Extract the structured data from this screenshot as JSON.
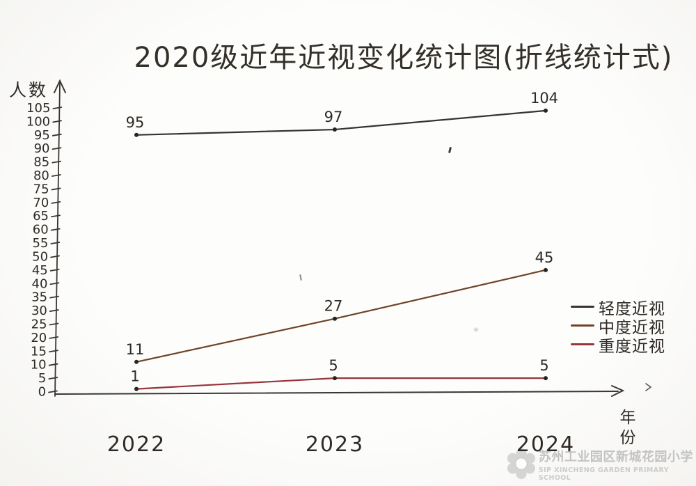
{
  "page": {
    "paper_color": "#fdfdfc",
    "ink_color": "#2e2a26"
  },
  "chart_data": {
    "type": "line",
    "title": "2020级近年近视变化统计图(折线统计式)",
    "ylabel": "人数",
    "xlabel": "年份",
    "categories": [
      "2022",
      "2023",
      "2024"
    ],
    "y_ticks": [
      0,
      5,
      10,
      15,
      20,
      25,
      30,
      35,
      40,
      45,
      50,
      55,
      60,
      65,
      70,
      75,
      80,
      85,
      90,
      95,
      100,
      105
    ],
    "ylim": [
      0,
      105
    ],
    "grid": false,
    "legend_position": "right",
    "series": [
      {
        "key": "mild",
        "name": "轻度近视",
        "values": [
          95,
          97,
          104
        ],
        "color": "#38332e"
      },
      {
        "key": "moderate",
        "name": "中度近视",
        "values": [
          11,
          27,
          45
        ],
        "color": "#6e4426"
      },
      {
        "key": "severe",
        "name": "重度近视",
        "values": [
          1,
          5,
          5
        ],
        "color": "#97343a"
      }
    ]
  },
  "watermark": {
    "school_cn": "苏州工业园区新城花园小学",
    "school_en": "SIP XINCHENG GARDEN PRIMARY SCHOOL"
  }
}
